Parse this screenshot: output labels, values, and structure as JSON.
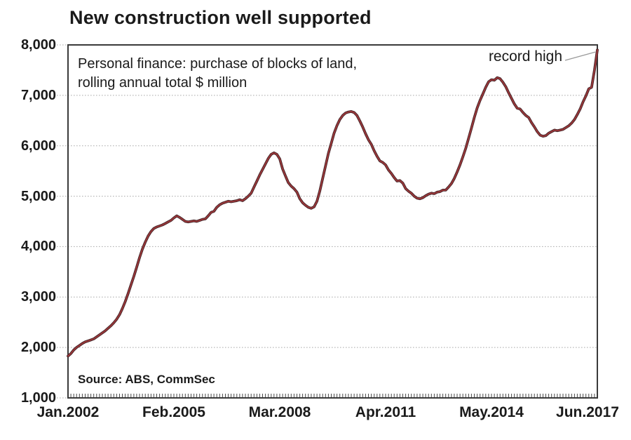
{
  "title": "New construction well supported",
  "subtitle": {
    "line1": "Personal finance: purchase of blocks of land,",
    "line2": "rolling annual total $ million"
  },
  "source": "Source: ABS, CommSec",
  "colors": {
    "line": "#9d3739",
    "line_edge": "#46272b",
    "grid": "#ababab",
    "frame": "#3a3a3a",
    "text": "#1a1a1a",
    "callout_line": "#999999"
  },
  "chart_data": {
    "type": "line",
    "title": "New construction well supported",
    "subtitle": "Personal finance: purchase of blocks of land, rolling annual total $ million",
    "xlabel": "",
    "ylabel": "",
    "x_tick_labels": [
      "Jan.2002",
      "Feb.2005",
      "Mar.2008",
      "Apr.2011",
      "May.2014",
      "Jun.2017"
    ],
    "y_tick_labels": [
      "1,000",
      "2,000",
      "3,000",
      "4,000",
      "5,000",
      "6,000",
      "7,000",
      "8,000"
    ],
    "ylim": [
      1000,
      8000
    ],
    "x_start": "Jan 2002",
    "x_end": "Jun 2017",
    "x_frequency": "monthly",
    "grid": "horizontal-dotted",
    "legend": "none",
    "annotations": [
      {
        "text": "record high",
        "points_to": "final point Jun 2017 ≈ 7,900"
      }
    ],
    "key_points": [
      {
        "x": "Jan 2002",
        "value": 1830
      },
      {
        "x": "Mar 2005",
        "value": 4610,
        "note": "local peak"
      },
      {
        "x": "Jan 2008",
        "value": 5860,
        "note": "local peak"
      },
      {
        "x": "Feb 2009",
        "value": 4760,
        "note": "trough"
      },
      {
        "x": "Apr 2010",
        "value": 6680,
        "note": "local peak"
      },
      {
        "x": "Apr 2012",
        "value": 4950,
        "note": "trough"
      },
      {
        "x": "Jul 2014",
        "value": 7350,
        "note": "local peak"
      },
      {
        "x": "Nov 2015",
        "value": 6190,
        "note": "trough"
      },
      {
        "x": "Jun 2017",
        "value": 7900,
        "note": "record high"
      }
    ],
    "series": [
      {
        "name": "Personal finance: purchase of blocks of land, rolling annual total ($ million)",
        "values": [
          1830,
          1880,
          1950,
          2000,
          2040,
          2080,
          2110,
          2130,
          2150,
          2170,
          2210,
          2250,
          2290,
          2330,
          2380,
          2430,
          2490,
          2560,
          2650,
          2770,
          2910,
          3070,
          3240,
          3410,
          3590,
          3780,
          3950,
          4090,
          4210,
          4300,
          4360,
          4390,
          4410,
          4430,
          4460,
          4490,
          4520,
          4570,
          4610,
          4580,
          4540,
          4500,
          4490,
          4500,
          4510,
          4500,
          4520,
          4540,
          4550,
          4610,
          4680,
          4700,
          4780,
          4830,
          4860,
          4880,
          4900,
          4890,
          4900,
          4910,
          4930,
          4910,
          4950,
          5000,
          5060,
          5180,
          5300,
          5420,
          5530,
          5640,
          5750,
          5830,
          5860,
          5830,
          5740,
          5540,
          5400,
          5270,
          5200,
          5150,
          5080,
          4950,
          4870,
          4820,
          4780,
          4760,
          4790,
          4900,
          5100,
          5350,
          5600,
          5850,
          6050,
          6250,
          6400,
          6520,
          6600,
          6650,
          6670,
          6680,
          6660,
          6600,
          6490,
          6370,
          6240,
          6120,
          6030,
          5900,
          5790,
          5700,
          5670,
          5620,
          5520,
          5450,
          5370,
          5300,
          5310,
          5260,
          5150,
          5100,
          5060,
          5000,
          4960,
          4950,
          4970,
          5010,
          5040,
          5060,
          5050,
          5080,
          5090,
          5120,
          5120,
          5180,
          5250,
          5350,
          5480,
          5620,
          5780,
          5950,
          6150,
          6350,
          6560,
          6750,
          6900,
          7030,
          7160,
          7270,
          7310,
          7300,
          7350,
          7330,
          7260,
          7170,
          7050,
          6940,
          6830,
          6745,
          6730,
          6660,
          6600,
          6560,
          6460,
          6375,
          6280,
          6210,
          6190,
          6200,
          6250,
          6280,
          6310,
          6300,
          6310,
          6325,
          6360,
          6395,
          6450,
          6520,
          6620,
          6730,
          6870,
          6990,
          7130,
          7160,
          7500,
          7900
        ]
      }
    ]
  }
}
